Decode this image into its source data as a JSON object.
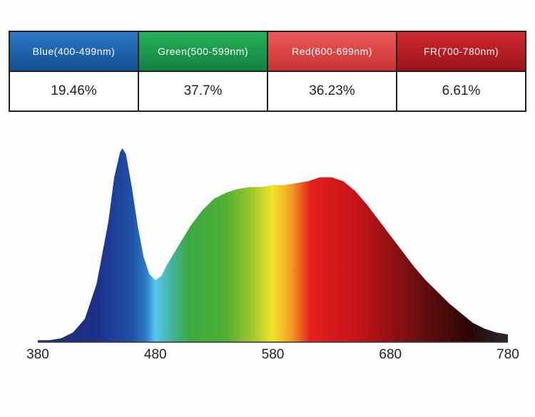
{
  "table": {
    "headers": [
      "Blue(400-499nm)",
      "Green(500-599nm)",
      "Red(600-699nm)",
      "FR(700-780nm)"
    ],
    "rows": [
      [
        "19.46%",
        "37.7%",
        "36.23%",
        "6.61%"
      ]
    ]
  },
  "chart_data": {
    "type": "area",
    "x": [
      380,
      390,
      400,
      410,
      420,
      430,
      440,
      445,
      450,
      452,
      455,
      460,
      465,
      470,
      475,
      480,
      485,
      490,
      500,
      510,
      520,
      530,
      540,
      550,
      560,
      570,
      580,
      590,
      600,
      610,
      620,
      630,
      640,
      650,
      660,
      670,
      680,
      690,
      700,
      710,
      720,
      730,
      740,
      750,
      760,
      770,
      780
    ],
    "values": [
      0.01,
      0.01,
      0.02,
      0.05,
      0.12,
      0.3,
      0.62,
      0.85,
      0.98,
      1.0,
      0.97,
      0.8,
      0.6,
      0.44,
      0.35,
      0.32,
      0.34,
      0.4,
      0.5,
      0.6,
      0.68,
      0.74,
      0.77,
      0.79,
      0.8,
      0.8,
      0.81,
      0.81,
      0.82,
      0.83,
      0.85,
      0.85,
      0.83,
      0.78,
      0.71,
      0.63,
      0.55,
      0.47,
      0.39,
      0.32,
      0.26,
      0.2,
      0.15,
      0.1,
      0.07,
      0.05,
      0.04
    ],
    "xlim": [
      380,
      780
    ],
    "ylim": [
      0,
      1
    ],
    "xticks": [
      380,
      480,
      580,
      680,
      780
    ],
    "grid": false
  }
}
